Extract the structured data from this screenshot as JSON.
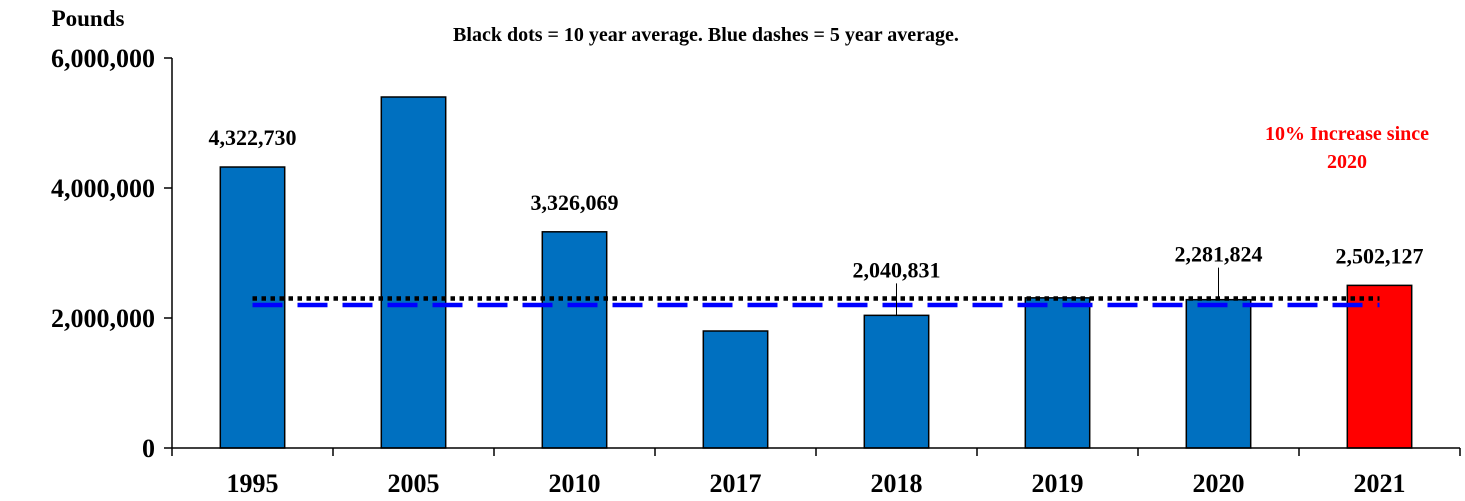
{
  "chart_data": {
    "type": "bar",
    "subtitle": "Black dots = 10 year average.  Blue dashes = 5 year average.",
    "ylabel": "Pounds",
    "xlabel": "",
    "ylim": [
      0,
      6000000
    ],
    "yticks": [
      0,
      2000000,
      4000000,
      6000000
    ],
    "ytick_labels": [
      "0",
      "2,000,000",
      "4,000,000",
      "6,000,000"
    ],
    "grid": false,
    "categories": [
      "1995",
      "2005",
      "2010",
      "2017",
      "2018",
      "2019",
      "2020",
      "2021"
    ],
    "values": [
      4322730,
      5400000,
      3326069,
      1800000,
      2040831,
      2310000,
      2281824,
      2502127
    ],
    "value_labels": [
      "4,322,730",
      "",
      "3,326,069",
      "",
      "2,040,831",
      "",
      "2,281,824",
      "2,502,127"
    ],
    "bar_colors": [
      "#0070C0",
      "#0070C0",
      "#0070C0",
      "#0070C0",
      "#0070C0",
      "#0070C0",
      "#0070C0",
      "#FF0000"
    ],
    "reference_lines": [
      {
        "name": "10 year average",
        "value": 2300000,
        "color": "#000000",
        "style": "dotted"
      },
      {
        "name": "5 year average",
        "value": 2200000,
        "color": "#0000FF",
        "style": "dashed"
      }
    ],
    "annotation": {
      "text_line1": "10% Increase since",
      "text_line2": "2020",
      "color": "#FF0000"
    }
  }
}
